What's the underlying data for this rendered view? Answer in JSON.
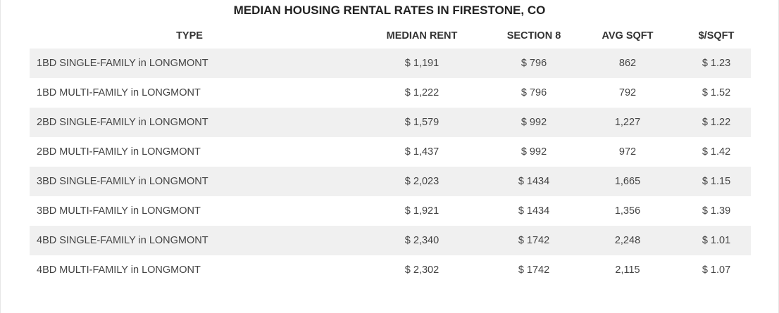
{
  "chart_data": {
    "type": "table",
    "title": "MEDIAN HOUSING RENTAL RATES IN FIRESTONE, CO",
    "columns": [
      "TYPE",
      "MEDIAN RENT",
      "SECTION 8",
      "AVG SQFT",
      "$/SQFT"
    ],
    "rows": [
      [
        "1BD SINGLE-FAMILY in LONGMONT",
        "$ 1,191",
        "$ 796",
        "862",
        "$ 1.23"
      ],
      [
        "1BD MULTI-FAMILY in LONGMONT",
        "$ 1,222",
        "$ 796",
        "792",
        "$ 1.52"
      ],
      [
        "2BD SINGLE-FAMILY in LONGMONT",
        "$ 1,579",
        "$ 992",
        "1,227",
        "$ 1.22"
      ],
      [
        "2BD MULTI-FAMILY in LONGMONT",
        "$ 1,437",
        "$ 992",
        "972",
        "$ 1.42"
      ],
      [
        "3BD SINGLE-FAMILY in LONGMONT",
        "$ 2,023",
        "$ 1434",
        "1,665",
        "$ 1.15"
      ],
      [
        "3BD MULTI-FAMILY in LONGMONT",
        "$ 1,921",
        "$ 1434",
        "1,356",
        "$ 1.39"
      ],
      [
        "4BD SINGLE-FAMILY in LONGMONT",
        "$ 2,340",
        "$ 1742",
        "2,248",
        "$ 1.01"
      ],
      [
        "4BD MULTI-FAMILY in LONGMONT",
        "$ 2,302",
        "$ 1742",
        "2,115",
        "$ 1.07"
      ]
    ]
  },
  "colors": {
    "stripe": "#f0f0f0",
    "text": "#444444",
    "header_text": "#333333"
  }
}
